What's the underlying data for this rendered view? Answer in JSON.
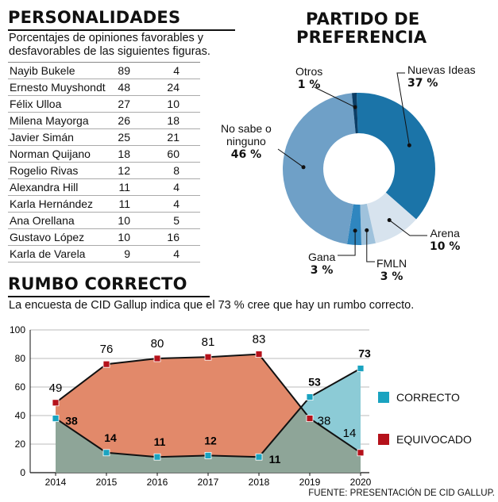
{
  "personalidades": {
    "title": "PERSONALIDADES",
    "subtitle_line1": "Porcentajes de opiniones favorables y",
    "subtitle_line2": "desfavorables de las siguientes figuras.",
    "rows": [
      {
        "name": "Nayib Bukele",
        "fav": "89",
        "desf": "4"
      },
      {
        "name": "Ernesto Muyshondt",
        "fav": "48",
        "desf": "24"
      },
      {
        "name": "Félix Ulloa",
        "fav": "27",
        "desf": "10"
      },
      {
        "name": "Milena Mayorga",
        "fav": "26",
        "desf": "18"
      },
      {
        "name": "Javier Simán",
        "fav": "25",
        "desf": "21"
      },
      {
        "name": "Norman Quijano",
        "fav": "18",
        "desf": "60"
      },
      {
        "name": "Rogelio Rivas",
        "fav": "12",
        "desf": "8"
      },
      {
        "name": "Alexandra Hill",
        "fav": "11",
        "desf": "4"
      },
      {
        "name": "Karla Hernández",
        "fav": "11",
        "desf": "4"
      },
      {
        "name": "Ana Orellana",
        "fav": "10",
        "desf": "5"
      },
      {
        "name": "Gustavo López",
        "fav": "10",
        "desf": "16"
      },
      {
        "name": "Karla de Varela",
        "fav": "9",
        "desf": "4"
      }
    ]
  },
  "partido": {
    "title_line1": "PARTIDO DE",
    "title_line2": "PREFERENCIA",
    "labels": {
      "otros_name": "Otros",
      "otros_val": "1 %",
      "nuevas_name": "Nuevas Ideas",
      "nuevas_val": "37 %",
      "nosabe_name1": "No sabe o",
      "nosabe_name2": "ninguno",
      "nosabe_val": "46 %",
      "arena_name": "Arena",
      "arena_val": "10 %",
      "gana_name": "Gana",
      "gana_val": "3 %",
      "fmln_name": "FMLN",
      "fmln_val": "3 %"
    }
  },
  "rumbo": {
    "title": "RUMBO CORRECTO",
    "subtitle": "La encuesta de CID Gallup indica que el 73 % cree que hay un rumbo correcto.",
    "legend_correcto": "CORRECTO",
    "legend_equivocado": "EQUIVOCADO"
  },
  "fuente": "FUENTE: PRESENTACIÓN DE CID GALLUP.",
  "colors": {
    "correcto_marker": "#1aa3c0",
    "equivocado_marker": "#b5121b",
    "correcto_area": "#8ea598",
    "equivocado_area": "#e2896a",
    "correcto_2019_area": "#8ccbd6",
    "nuevas": "#1b74a8",
    "nosabe": "#6fa0c7",
    "arena": "#d7e3ee",
    "fmln": "#9fc2dc",
    "gana": "#2f86bf",
    "otros": "#0b3e66"
  },
  "chart_data": [
    {
      "type": "pie",
      "title": "PARTIDO DE PREFERENCIA",
      "categories": [
        "Nuevas Ideas",
        "Arena",
        "FMLN",
        "Gana",
        "No sabe o ninguno",
        "Otros"
      ],
      "values": [
        37,
        10,
        3,
        3,
        46,
        1
      ],
      "donut": true
    },
    {
      "type": "area",
      "title": "RUMBO CORRECTO",
      "x": [
        "2014",
        "2015",
        "2016",
        "2017",
        "2018",
        "2019",
        "2020"
      ],
      "series": [
        {
          "name": "CORRECTO",
          "values": [
            38,
            14,
            11,
            12,
            11,
            53,
            73
          ]
        },
        {
          "name": "EQUIVOCADO",
          "values": [
            49,
            76,
            80,
            81,
            83,
            38,
            14
          ]
        }
      ],
      "ylim": [
        0,
        100
      ],
      "yticks": [
        0,
        20,
        40,
        60,
        80,
        100
      ],
      "legend": "right"
    }
  ]
}
